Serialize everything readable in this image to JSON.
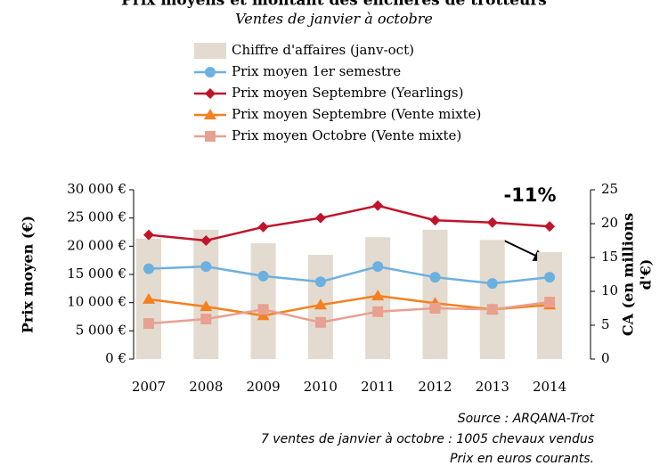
{
  "chart_data": {
    "type": "combo",
    "title": "Prix moyens et montant des enchères de trotteurs",
    "subtitle": "Ventes de janvier à octobre",
    "ylabel": "Prix moyen (€)",
    "y2label": [
      "CA (en millions",
      "d'€)"
    ],
    "categories": [
      "2007",
      "2008",
      "2009",
      "2010",
      "2011",
      "2012",
      "2013",
      "2014"
    ],
    "ylim": [
      0,
      30000
    ],
    "yticks": [
      {
        "value": 0,
        "label": "0 €"
      },
      {
        "value": 5000,
        "label": "5 000 €"
      },
      {
        "value": 10000,
        "label": "10 000 €"
      },
      {
        "value": 15000,
        "label": "15 000 €"
      },
      {
        "value": 20000,
        "label": "20 000 €"
      },
      {
        "value": 25000,
        "label": "25 000 €"
      },
      {
        "value": 30000,
        "label": "30 000 €"
      }
    ],
    "y2lim": [
      0,
      25
    ],
    "y2ticks": [
      0,
      5,
      10,
      15,
      20,
      25
    ],
    "series": [
      {
        "name": "Chiffre d'affaires (janv-oct)",
        "type": "bar",
        "axis": "y2",
        "color": "#e3dbcf",
        "values": [
          17.8,
          19.1,
          17.1,
          15.4,
          18.0,
          19.1,
          17.6,
          15.8
        ]
      },
      {
        "name": "Prix moyen 1er semestre",
        "type": "line",
        "marker": "circle",
        "color": "#6cb0e0",
        "values": [
          16000,
          16400,
          14700,
          13700,
          16400,
          14500,
          13400,
          14500
        ]
      },
      {
        "name": "Prix moyen Septembre (Yearlings)",
        "type": "line",
        "marker": "diamond",
        "color": "#c0142a",
        "values": [
          22000,
          21000,
          23400,
          25000,
          27200,
          24600,
          24200,
          23500
        ]
      },
      {
        "name": "Prix moyen Septembre (Vente mixte)",
        "type": "line",
        "marker": "triangle",
        "color": "#f58020",
        "values": [
          10600,
          9300,
          7700,
          9600,
          11200,
          9900,
          8800,
          9600
        ]
      },
      {
        "name": "Prix moyen Octobre (Vente mixte)",
        "type": "line",
        "marker": "square",
        "color": "#e8a090",
        "values": [
          6300,
          7100,
          8800,
          6500,
          8400,
          9000,
          8800,
          10100
        ]
      }
    ],
    "annotation": "-11%",
    "source": [
      "Source : ARQANA-Trot",
      "7 ventes de janvier à octobre : 1005 chevaux vendus",
      "Prix en euros courants."
    ]
  }
}
